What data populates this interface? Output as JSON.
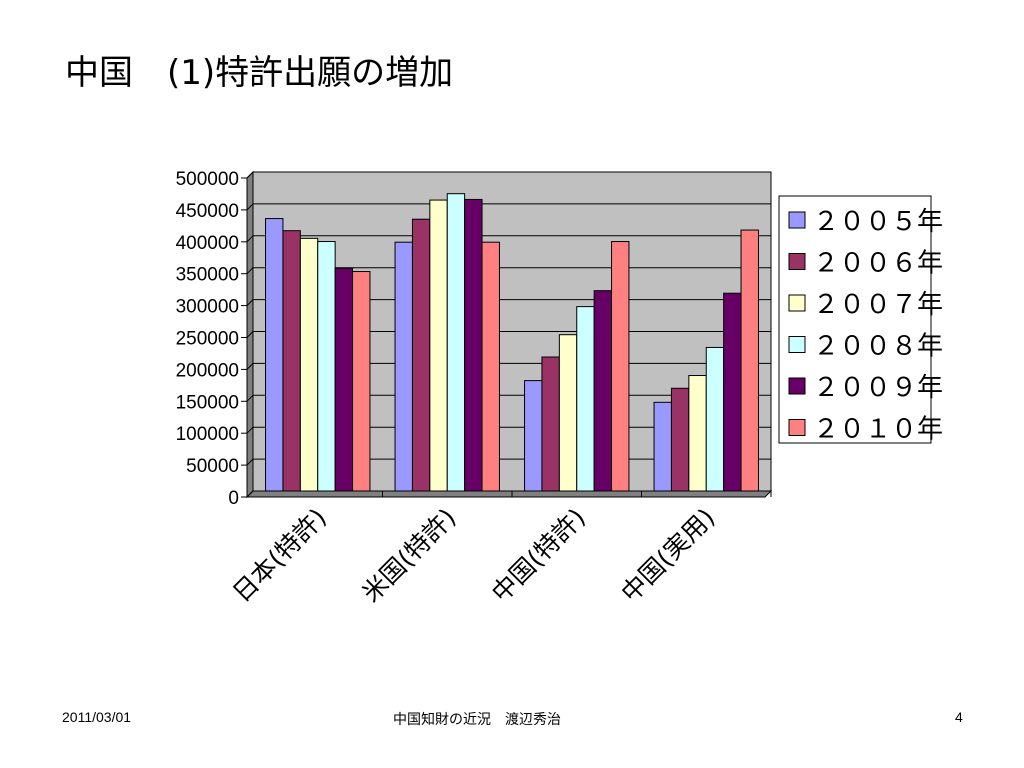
{
  "slide": {
    "title": "中国　(1)特許出願の増加",
    "footer_date": "2011/03/01",
    "footer_text": "中国知財の近況　渡辺秀治",
    "page_number": "4"
  },
  "chart_data": {
    "type": "bar",
    "categories": [
      "日本(特許)",
      "米国(特許)",
      "中国(特許)",
      "中国(実用)"
    ],
    "ylim": [
      0,
      500000
    ],
    "yticks": [
      0,
      50000,
      100000,
      150000,
      200000,
      250000,
      300000,
      350000,
      400000,
      450000,
      500000
    ],
    "grid": true,
    "legend_position": "right",
    "plot_background": "#c0c0c0",
    "series": [
      {
        "name": "２００５年",
        "color": "#9999ff",
        "values": [
          427000,
          390000,
          173000,
          139000
        ]
      },
      {
        "name": "２００６年",
        "color": "#993366",
        "values": [
          408000,
          426000,
          210000,
          161000
        ]
      },
      {
        "name": "２００７年",
        "color": "#ffffcc",
        "values": [
          396000,
          456000,
          245000,
          181000
        ]
      },
      {
        "name": "２００８年",
        "color": "#ccffff",
        "values": [
          391000,
          466000,
          289000,
          225000
        ]
      },
      {
        "name": "２００９年",
        "color": "#660066",
        "values": [
          349000,
          457000,
          314000,
          310000
        ]
      },
      {
        "name": "２０１０年",
        "color": "#ff8080",
        "values": [
          344000,
          390000,
          391000,
          409000
        ]
      }
    ]
  }
}
